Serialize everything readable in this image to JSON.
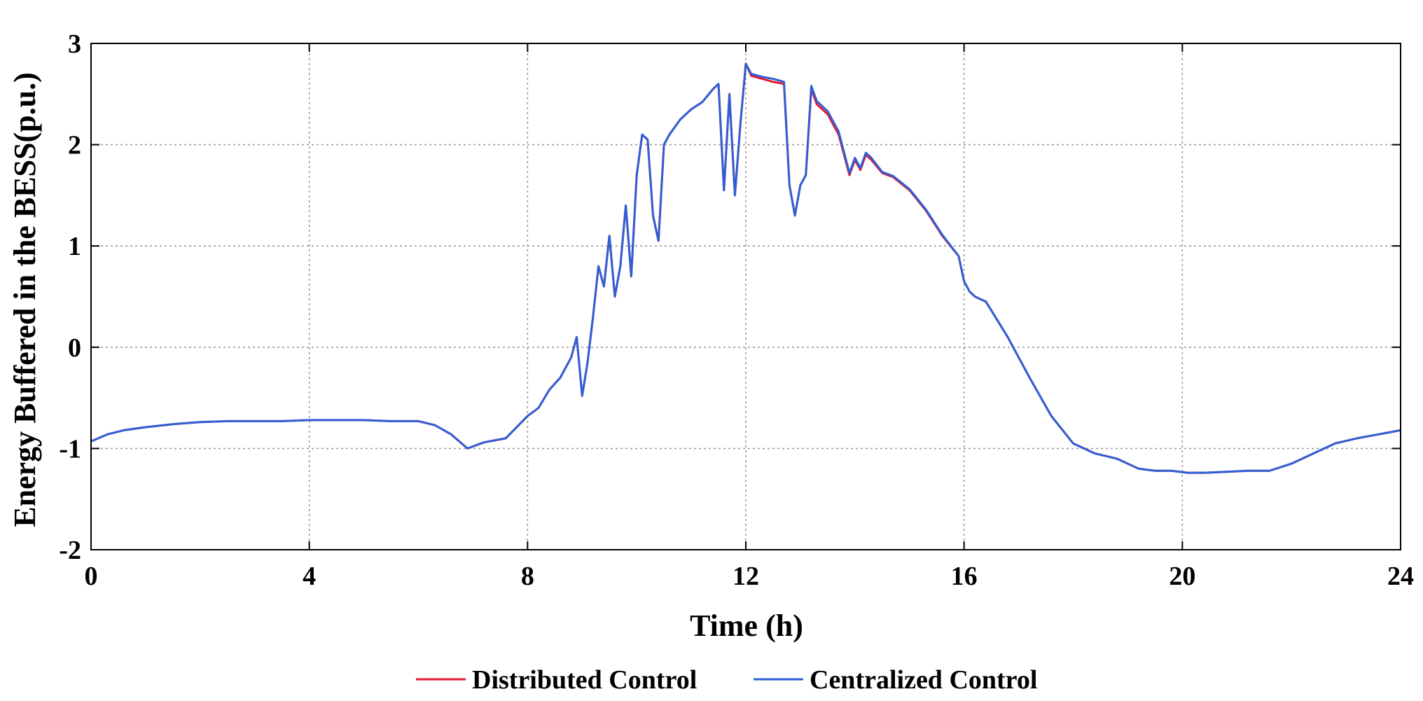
{
  "chart_data": {
    "type": "line",
    "title": "",
    "xlabel": "Time (h)",
    "ylabel": "Energy Buffered in the BESS(p.u.)",
    "xlim": [
      0,
      24
    ],
    "ylim": [
      -2,
      3
    ],
    "xticks": [
      0,
      4,
      8,
      12,
      16,
      20,
      24
    ],
    "yticks": [
      -2,
      -1,
      0,
      1,
      2,
      3
    ],
    "grid": true,
    "legend_position": "bottom-center",
    "series": [
      {
        "name": "Distributed Control",
        "color": "#e8192c",
        "x": [
          0,
          0.3,
          0.6,
          1,
          1.5,
          2,
          2.5,
          3,
          3.5,
          4,
          4.5,
          5,
          5.5,
          6,
          6.3,
          6.6,
          6.9,
          7.2,
          7.6,
          8,
          8.2,
          8.4,
          8.6,
          8.8,
          8.9,
          9.0,
          9.1,
          9.2,
          9.3,
          9.4,
          9.5,
          9.6,
          9.7,
          9.8,
          9.9,
          10.0,
          10.1,
          10.2,
          10.3,
          10.4,
          10.5,
          10.6,
          10.8,
          11.0,
          11.2,
          11.4,
          11.5,
          11.6,
          11.7,
          11.8,
          11.9,
          12.0,
          12.1,
          12.3,
          12.5,
          12.7,
          12.8,
          12.9,
          13.0,
          13.1,
          13.2,
          13.3,
          13.5,
          13.7,
          13.9,
          14.0,
          14.1,
          14.2,
          14.3,
          14.5,
          14.7,
          15.0,
          15.3,
          15.6,
          15.9,
          16.0,
          16.1,
          16.2,
          16.4,
          16.8,
          17.2,
          17.6,
          18.0,
          18.4,
          18.8,
          19.2,
          19.5,
          19.8,
          20.1,
          20.4,
          20.8,
          21.2,
          21.6,
          22.0,
          22.4,
          22.8,
          23.2,
          23.6,
          24.0
        ],
        "y": [
          -0.93,
          -0.86,
          -0.82,
          -0.79,
          -0.76,
          -0.74,
          -0.73,
          -0.73,
          -0.73,
          -0.72,
          -0.72,
          -0.72,
          -0.73,
          -0.73,
          -0.77,
          -0.86,
          -1.0,
          -0.94,
          -0.9,
          -0.68,
          -0.6,
          -0.42,
          -0.3,
          -0.1,
          0.1,
          -0.48,
          -0.15,
          0.3,
          0.8,
          0.6,
          1.1,
          0.5,
          0.8,
          1.4,
          0.7,
          1.7,
          2.1,
          2.05,
          1.3,
          1.05,
          2.0,
          2.1,
          2.25,
          2.35,
          2.42,
          2.55,
          2.6,
          1.55,
          2.5,
          1.5,
          2.2,
          2.8,
          2.68,
          2.65,
          2.62,
          2.6,
          1.6,
          1.3,
          1.6,
          1.7,
          2.55,
          2.4,
          2.3,
          2.1,
          1.7,
          1.85,
          1.75,
          1.9,
          1.85,
          1.72,
          1.68,
          1.55,
          1.35,
          1.1,
          0.9,
          0.65,
          0.55,
          0.5,
          0.45,
          0.1,
          -0.3,
          -0.68,
          -0.95,
          -1.05,
          -1.1,
          -1.2,
          -1.22,
          -1.22,
          -1.24,
          -1.24,
          -1.23,
          -1.22,
          -1.22,
          -1.15,
          -1.05,
          -0.95,
          -0.9,
          -0.86,
          -0.82
        ]
      },
      {
        "name": "Centralized Control",
        "color": "#2f5fd6",
        "x": [
          0,
          0.3,
          0.6,
          1,
          1.5,
          2,
          2.5,
          3,
          3.5,
          4,
          4.5,
          5,
          5.5,
          6,
          6.3,
          6.6,
          6.9,
          7.2,
          7.6,
          8,
          8.2,
          8.4,
          8.6,
          8.8,
          8.9,
          9.0,
          9.1,
          9.2,
          9.3,
          9.4,
          9.5,
          9.6,
          9.7,
          9.8,
          9.9,
          10.0,
          10.1,
          10.2,
          10.3,
          10.4,
          10.5,
          10.6,
          10.8,
          11.0,
          11.2,
          11.4,
          11.5,
          11.6,
          11.7,
          11.8,
          11.9,
          12.0,
          12.1,
          12.3,
          12.5,
          12.7,
          12.8,
          12.9,
          13.0,
          13.1,
          13.2,
          13.3,
          13.5,
          13.7,
          13.9,
          14.0,
          14.1,
          14.2,
          14.3,
          14.5,
          14.7,
          15.0,
          15.3,
          15.6,
          15.9,
          16.0,
          16.1,
          16.2,
          16.4,
          16.8,
          17.2,
          17.6,
          18.0,
          18.4,
          18.8,
          19.2,
          19.5,
          19.8,
          20.1,
          20.4,
          20.8,
          21.2,
          21.6,
          22.0,
          22.4,
          22.8,
          23.2,
          23.6,
          24.0
        ],
        "y": [
          -0.93,
          -0.86,
          -0.82,
          -0.79,
          -0.76,
          -0.74,
          -0.73,
          -0.73,
          -0.73,
          -0.72,
          -0.72,
          -0.72,
          -0.73,
          -0.73,
          -0.77,
          -0.86,
          -1.0,
          -0.94,
          -0.9,
          -0.68,
          -0.6,
          -0.42,
          -0.3,
          -0.1,
          0.1,
          -0.48,
          -0.15,
          0.3,
          0.8,
          0.6,
          1.1,
          0.5,
          0.8,
          1.4,
          0.7,
          1.7,
          2.1,
          2.05,
          1.3,
          1.05,
          2.0,
          2.1,
          2.25,
          2.35,
          2.42,
          2.55,
          2.6,
          1.55,
          2.5,
          1.5,
          2.2,
          2.8,
          2.7,
          2.67,
          2.65,
          2.62,
          1.6,
          1.3,
          1.6,
          1.7,
          2.58,
          2.43,
          2.33,
          2.13,
          1.72,
          1.87,
          1.77,
          1.92,
          1.87,
          1.73,
          1.69,
          1.56,
          1.36,
          1.11,
          0.9,
          0.65,
          0.55,
          0.5,
          0.45,
          0.1,
          -0.3,
          -0.68,
          -0.95,
          -1.05,
          -1.1,
          -1.2,
          -1.22,
          -1.22,
          -1.24,
          -1.24,
          -1.23,
          -1.22,
          -1.22,
          -1.15,
          -1.05,
          -0.95,
          -0.9,
          -0.86,
          -0.82
        ]
      }
    ]
  }
}
